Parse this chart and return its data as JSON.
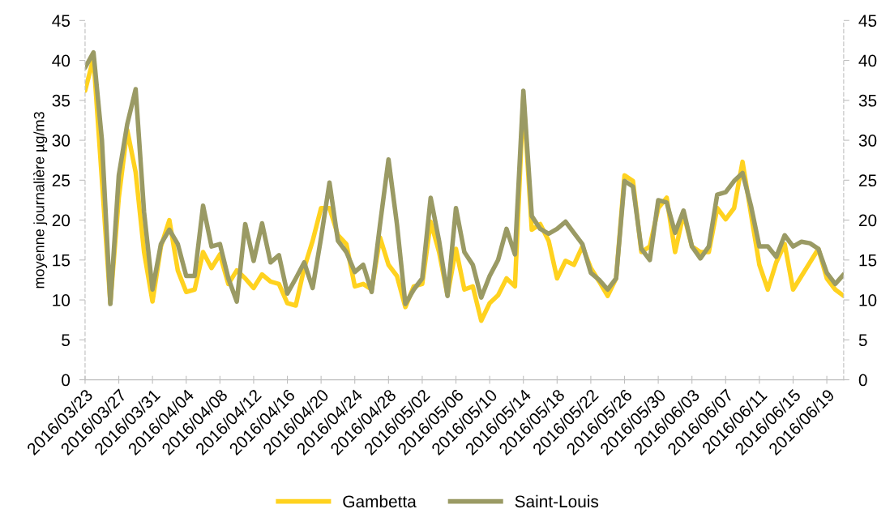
{
  "chart_data": {
    "type": "line",
    "ylabel": "moyenne journalière µg/m3",
    "x": [
      "2016-03-23",
      "2016-03-24",
      "2016-03-25",
      "2016-03-26",
      "2016-03-27",
      "2016-03-28",
      "2016-03-29",
      "2016-03-30",
      "2016-03-31",
      "2016-04-01",
      "2016-04-02",
      "2016-04-03",
      "2016-04-04",
      "2016-04-05",
      "2016-04-06",
      "2016-04-07",
      "2016-04-08",
      "2016-04-09",
      "2016-04-10",
      "2016-04-11",
      "2016-04-12",
      "2016-04-13",
      "2016-04-14",
      "2016-04-15",
      "2016-04-16",
      "2016-04-17",
      "2016-04-18",
      "2016-04-19",
      "2016-04-20",
      "2016-04-21",
      "2016-04-22",
      "2016-04-23",
      "2016-04-24",
      "2016-04-25",
      "2016-04-26",
      "2016-04-27",
      "2016-04-28",
      "2016-04-29",
      "2016-04-30",
      "2016-05-01",
      "2016-05-02",
      "2016-05-03",
      "2016-05-04",
      "2016-05-05",
      "2016-05-06",
      "2016-05-07",
      "2016-05-08",
      "2016-05-09",
      "2016-05-10",
      "2016-05-11",
      "2016-05-12",
      "2016-05-13",
      "2016-05-14",
      "2016-05-15",
      "2016-05-16",
      "2016-05-17",
      "2016-05-18",
      "2016-05-19",
      "2016-05-20",
      "2016-05-21",
      "2016-05-22",
      "2016-05-23",
      "2016-05-24",
      "2016-05-25",
      "2016-05-26",
      "2016-05-27",
      "2016-05-28",
      "2016-05-29",
      "2016-05-30",
      "2016-05-31",
      "2016-06-01",
      "2016-06-02",
      "2016-06-03",
      "2016-06-04",
      "2016-06-05",
      "2016-06-06",
      "2016-06-07",
      "2016-06-08",
      "2016-06-09",
      "2016-06-10",
      "2016-06-11",
      "2016-06-12",
      "2016-06-13",
      "2016-06-14",
      "2016-06-15",
      "2016-06-16",
      "2016-06-17",
      "2016-06-18",
      "2016-06-19",
      "2016-06-20",
      "2016-06-21"
    ],
    "series": [
      {
        "name": "Gambetta",
        "color": "#ffd21f",
        "values": [
          36.2,
          40.3,
          25,
          9.6,
          22.8,
          31.3,
          26,
          16,
          9.8,
          16.7,
          20,
          13.7,
          11,
          11.3,
          16,
          14,
          15.7,
          12,
          13.7,
          12.7,
          11.5,
          13.2,
          12.3,
          12,
          9.6,
          9.3,
          14,
          17.4,
          21.5,
          21.5,
          18.1,
          17,
          11.7,
          12,
          11.3,
          17.8,
          14.4,
          13,
          9.1,
          11.7,
          12,
          19.8,
          16,
          10.6,
          16.4,
          11.3,
          11.7,
          7.4,
          9.6,
          10.6,
          12.7,
          11.7,
          35.5,
          18.8,
          19.5,
          17.4,
          12.7,
          14.9,
          14.4,
          16.7,
          14,
          12.3,
          10.5,
          12.7,
          25.6,
          24.9,
          16,
          16.7,
          21.5,
          22.8,
          16,
          20.8,
          16.7,
          16,
          16,
          21.5,
          20.1,
          21.5,
          27.3,
          20.8,
          14.4,
          11.3,
          14.7,
          17,
          11.3,
          13,
          14.7,
          16.4,
          12.7,
          11.3,
          10.5
        ]
      },
      {
        "name": "Saint-Louis",
        "color": "#9a9a64",
        "values": [
          39.1,
          41,
          30,
          9.5,
          25.6,
          32,
          36.4,
          21,
          11.3,
          17,
          18.8,
          17,
          13,
          13,
          21.8,
          16.7,
          17,
          12.7,
          9.8,
          19.5,
          14.9,
          19.6,
          14.7,
          15.6,
          10.8,
          12.7,
          14.7,
          11.5,
          17.8,
          24.7,
          17.4,
          16,
          13.5,
          14.4,
          11,
          19.5,
          27.6,
          19.5,
          9.5,
          11.3,
          12.7,
          22.8,
          17.4,
          10.5,
          21.5,
          16,
          14.4,
          10.3,
          13,
          15,
          18.9,
          15.7,
          36.2,
          20.5,
          18.9,
          18.3,
          18.9,
          19.8,
          18.4,
          17,
          13.4,
          12.5,
          11.3,
          12.7,
          24.9,
          24.2,
          16.4,
          15,
          22.5,
          22.2,
          18.4,
          21.2,
          16.7,
          15.2,
          16.7,
          23.2,
          23.5,
          24.9,
          25.9,
          21.8,
          16.7,
          16.7,
          15.4,
          18.1,
          16.7,
          17.3,
          17.1,
          16.4,
          13.4,
          12,
          13.2
        ]
      }
    ],
    "xlim": [
      "2016-03-23",
      "2016-06-21"
    ],
    "xticks": [
      {
        "value": "2016-03-23",
        "label": "2016/03/23"
      },
      {
        "value": "2016-03-27",
        "label": "2016/03/27"
      },
      {
        "value": "2016-03-31",
        "label": "2016/03/31"
      },
      {
        "value": "2016-04-04",
        "label": "2016/04/04"
      },
      {
        "value": "2016-04-08",
        "label": "2016/04/08"
      },
      {
        "value": "2016-04-12",
        "label": "2016/04/12"
      },
      {
        "value": "2016-04-16",
        "label": "2016/04/16"
      },
      {
        "value": "2016-04-20",
        "label": "2016/04/20"
      },
      {
        "value": "2016-04-24",
        "label": "2016/04/24"
      },
      {
        "value": "2016-04-28",
        "label": "2016/04/28"
      },
      {
        "value": "2016-05-02",
        "label": "2016/05/02"
      },
      {
        "value": "2016-05-06",
        "label": "2016/05/06"
      },
      {
        "value": "2016-05-10",
        "label": "2016/05/10"
      },
      {
        "value": "2016-05-14",
        "label": "2016/05/14"
      },
      {
        "value": "2016-05-18",
        "label": "2016/05/18"
      },
      {
        "value": "2016-05-22",
        "label": "2016/05/22"
      },
      {
        "value": "2016-05-26",
        "label": "2016/05/26"
      },
      {
        "value": "2016-05-30",
        "label": "2016/05/30"
      },
      {
        "value": "2016-06-03",
        "label": "2016/06/03"
      },
      {
        "value": "2016-06-07",
        "label": "2016/06/07"
      },
      {
        "value": "2016-06-11",
        "label": "2016/06/11"
      },
      {
        "value": "2016-06-15",
        "label": "2016/06/15"
      },
      {
        "value": "2016-06-19",
        "label": "2016/06/19"
      }
    ],
    "ylim": [
      0,
      45
    ],
    "yticks": [
      0,
      5,
      10,
      15,
      20,
      25,
      30,
      35,
      40,
      45
    ],
    "y2lim": [
      0,
      45
    ],
    "y2ticks": [
      0,
      5,
      10,
      15,
      20,
      25,
      30,
      35,
      40,
      45
    ],
    "grid": false,
    "legend": "bottom",
    "marker": "none",
    "line_style": "solid"
  }
}
